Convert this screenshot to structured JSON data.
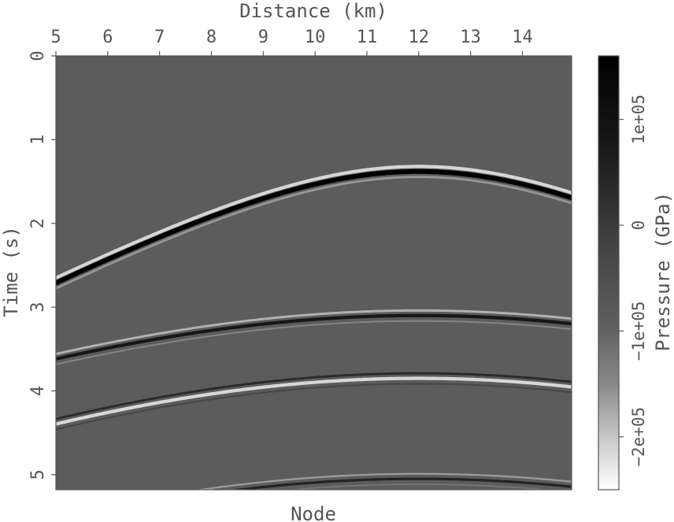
{
  "chart_data": {
    "type": "heatmap",
    "title": "",
    "top_xlabel": "Distance (km)",
    "bottom_xlabel": "Node",
    "ylabel": "Time (s)",
    "x_ticks": [
      "5",
      "6",
      "7",
      "8",
      "9",
      "10",
      "11",
      "12",
      "13",
      "14"
    ],
    "y_ticks": [
      "0",
      "1",
      "2",
      "3",
      "4",
      "5"
    ],
    "xlim": [
      5,
      14.95
    ],
    "ylim": [
      0,
      5.18
    ],
    "y_axis": "inverted",
    "colorscale": "gray",
    "colorbar": {
      "label": "Pressure (GPa)",
      "ticks": [
        "1e+05",
        "0",
        "−1e+05",
        "−2e+05"
      ],
      "range": [
        160000.0,
        -250000.0
      ]
    },
    "events": [
      {
        "apex_x": 12.0,
        "apex_t": 1.38,
        "velocity": 3.0,
        "polarity": "black",
        "strength": 1.0
      },
      {
        "apex_x": 12.0,
        "apex_t": 3.1,
        "velocity": 3.75,
        "polarity": "black",
        "strength": 0.55
      },
      {
        "apex_x": 12.0,
        "apex_t": 3.85,
        "velocity": 3.3,
        "polarity": "white",
        "strength": 0.55
      },
      {
        "apex_x": 12.0,
        "apex_t": 5.05,
        "velocity": 3.0,
        "polarity": "black",
        "strength": 0.3
      }
    ]
  }
}
